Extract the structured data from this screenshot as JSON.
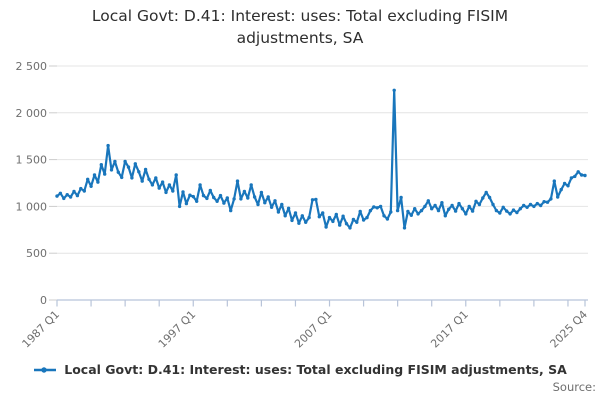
{
  "title": "Local Govt: D.41: Interest: uses: Total excluding FISIM adjustments, SA",
  "legend": {
    "label": "Local Govt: D.41: Interest: uses: Total excluding FISIM adjustments, SA"
  },
  "source_label": "Source:",
  "colors": {
    "line": "#1976bc",
    "grid": "#e4e4e4",
    "axis": "#b8c4d9",
    "y_tick": "#cccccc",
    "axis_text": "#6f6f6f"
  },
  "chart_data": {
    "type": "line",
    "title": "Local Govt: D.41: Interest: uses: Total excluding FISIM adjustments, SA",
    "series_name": "Local Govt: D.41: Interest: uses: Total excluding FISIM adjustments, SA",
    "frequency": "quarterly",
    "x_start": "1987 Q1",
    "x_end": "2025 Q4",
    "ylim": [
      0,
      2500
    ],
    "grid": "horizontal",
    "legend_position": "bottom",
    "y_ticks": [
      {
        "v": 0,
        "label": "0"
      },
      {
        "v": 500,
        "label": "500"
      },
      {
        "v": 1000,
        "label": "1 000"
      },
      {
        "v": 1500,
        "label": "1 500"
      },
      {
        "v": 2000,
        "label": "2 000"
      },
      {
        "v": 2500,
        "label": "2 500"
      }
    ],
    "x_ticks": [
      {
        "q": 0,
        "label": "1987 Q1"
      },
      {
        "q": 10,
        "label": ""
      },
      {
        "q": 20,
        "label": ""
      },
      {
        "q": 30,
        "label": ""
      },
      {
        "q": 40,
        "label": "1997 Q1"
      },
      {
        "q": 50,
        "label": ""
      },
      {
        "q": 60,
        "label": ""
      },
      {
        "q": 70,
        "label": ""
      },
      {
        "q": 80,
        "label": "2007 Q1"
      },
      {
        "q": 90,
        "label": ""
      },
      {
        "q": 100,
        "label": ""
      },
      {
        "q": 110,
        "label": ""
      },
      {
        "q": 120,
        "label": "2017 Q1"
      },
      {
        "q": 130,
        "label": ""
      },
      {
        "q": 140,
        "label": ""
      },
      {
        "q": 150,
        "label": ""
      },
      {
        "q": 155,
        "label": "2025 Q4"
      }
    ],
    "values": [
      1110,
      1140,
      1085,
      1125,
      1100,
      1160,
      1115,
      1190,
      1165,
      1290,
      1215,
      1335,
      1260,
      1445,
      1345,
      1650,
      1390,
      1480,
      1365,
      1310,
      1480,
      1420,
      1305,
      1455,
      1370,
      1270,
      1395,
      1290,
      1230,
      1305,
      1195,
      1260,
      1150,
      1230,
      1165,
      1335,
      1000,
      1155,
      1030,
      1120,
      1105,
      1055,
      1230,
      1115,
      1085,
      1170,
      1095,
      1055,
      1115,
      1035,
      1090,
      955,
      1080,
      1270,
      1080,
      1160,
      1090,
      1230,
      1100,
      1020,
      1150,
      1040,
      1100,
      990,
      1060,
      940,
      1020,
      900,
      980,
      850,
      930,
      820,
      900,
      830,
      880,
      1070,
      1075,
      890,
      930,
      780,
      880,
      840,
      915,
      800,
      895,
      815,
      770,
      860,
      830,
      945,
      855,
      880,
      955,
      995,
      985,
      1000,
      900,
      865,
      940,
      2240,
      955,
      1095,
      770,
      945,
      905,
      975,
      920,
      955,
      1000,
      1060,
      975,
      1010,
      955,
      1040,
      900,
      970,
      1010,
      950,
      1030,
      975,
      920,
      1000,
      950,
      1055,
      1020,
      1090,
      1150,
      1095,
      1020,
      955,
      930,
      990,
      950,
      920,
      960,
      935,
      975,
      1010,
      990,
      1020,
      1000,
      1030,
      1010,
      1050,
      1045,
      1080,
      1270,
      1100,
      1180,
      1245,
      1220,
      1305,
      1320,
      1370,
      1335,
      1330
    ]
  }
}
